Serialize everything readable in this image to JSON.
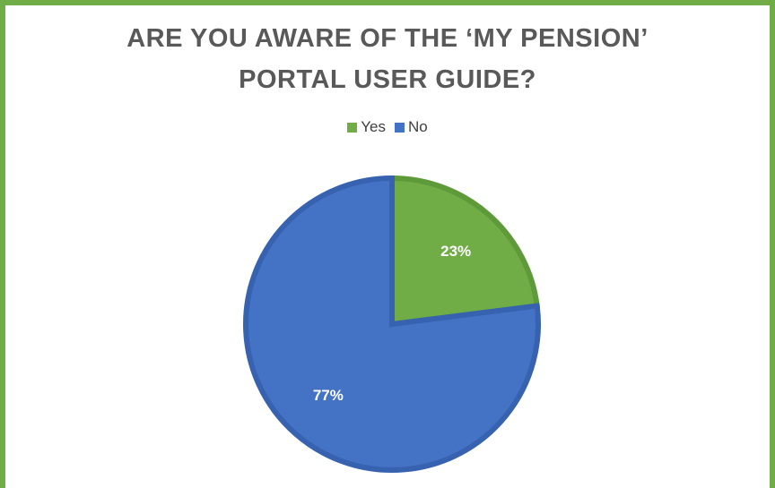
{
  "chart_data": {
    "type": "pie",
    "title_lines": [
      "ARE YOU AWARE OF THE ‘MY PENSION’",
      "PORTAL USER GUIDE?"
    ],
    "legend_position": "top",
    "categories": [
      "Yes",
      "No"
    ],
    "values": [
      23,
      77
    ],
    "labels": [
      "23%",
      "77%"
    ],
    "colors": [
      "#70ad47",
      "#4472c4"
    ]
  },
  "frame_color": "#70ad47"
}
